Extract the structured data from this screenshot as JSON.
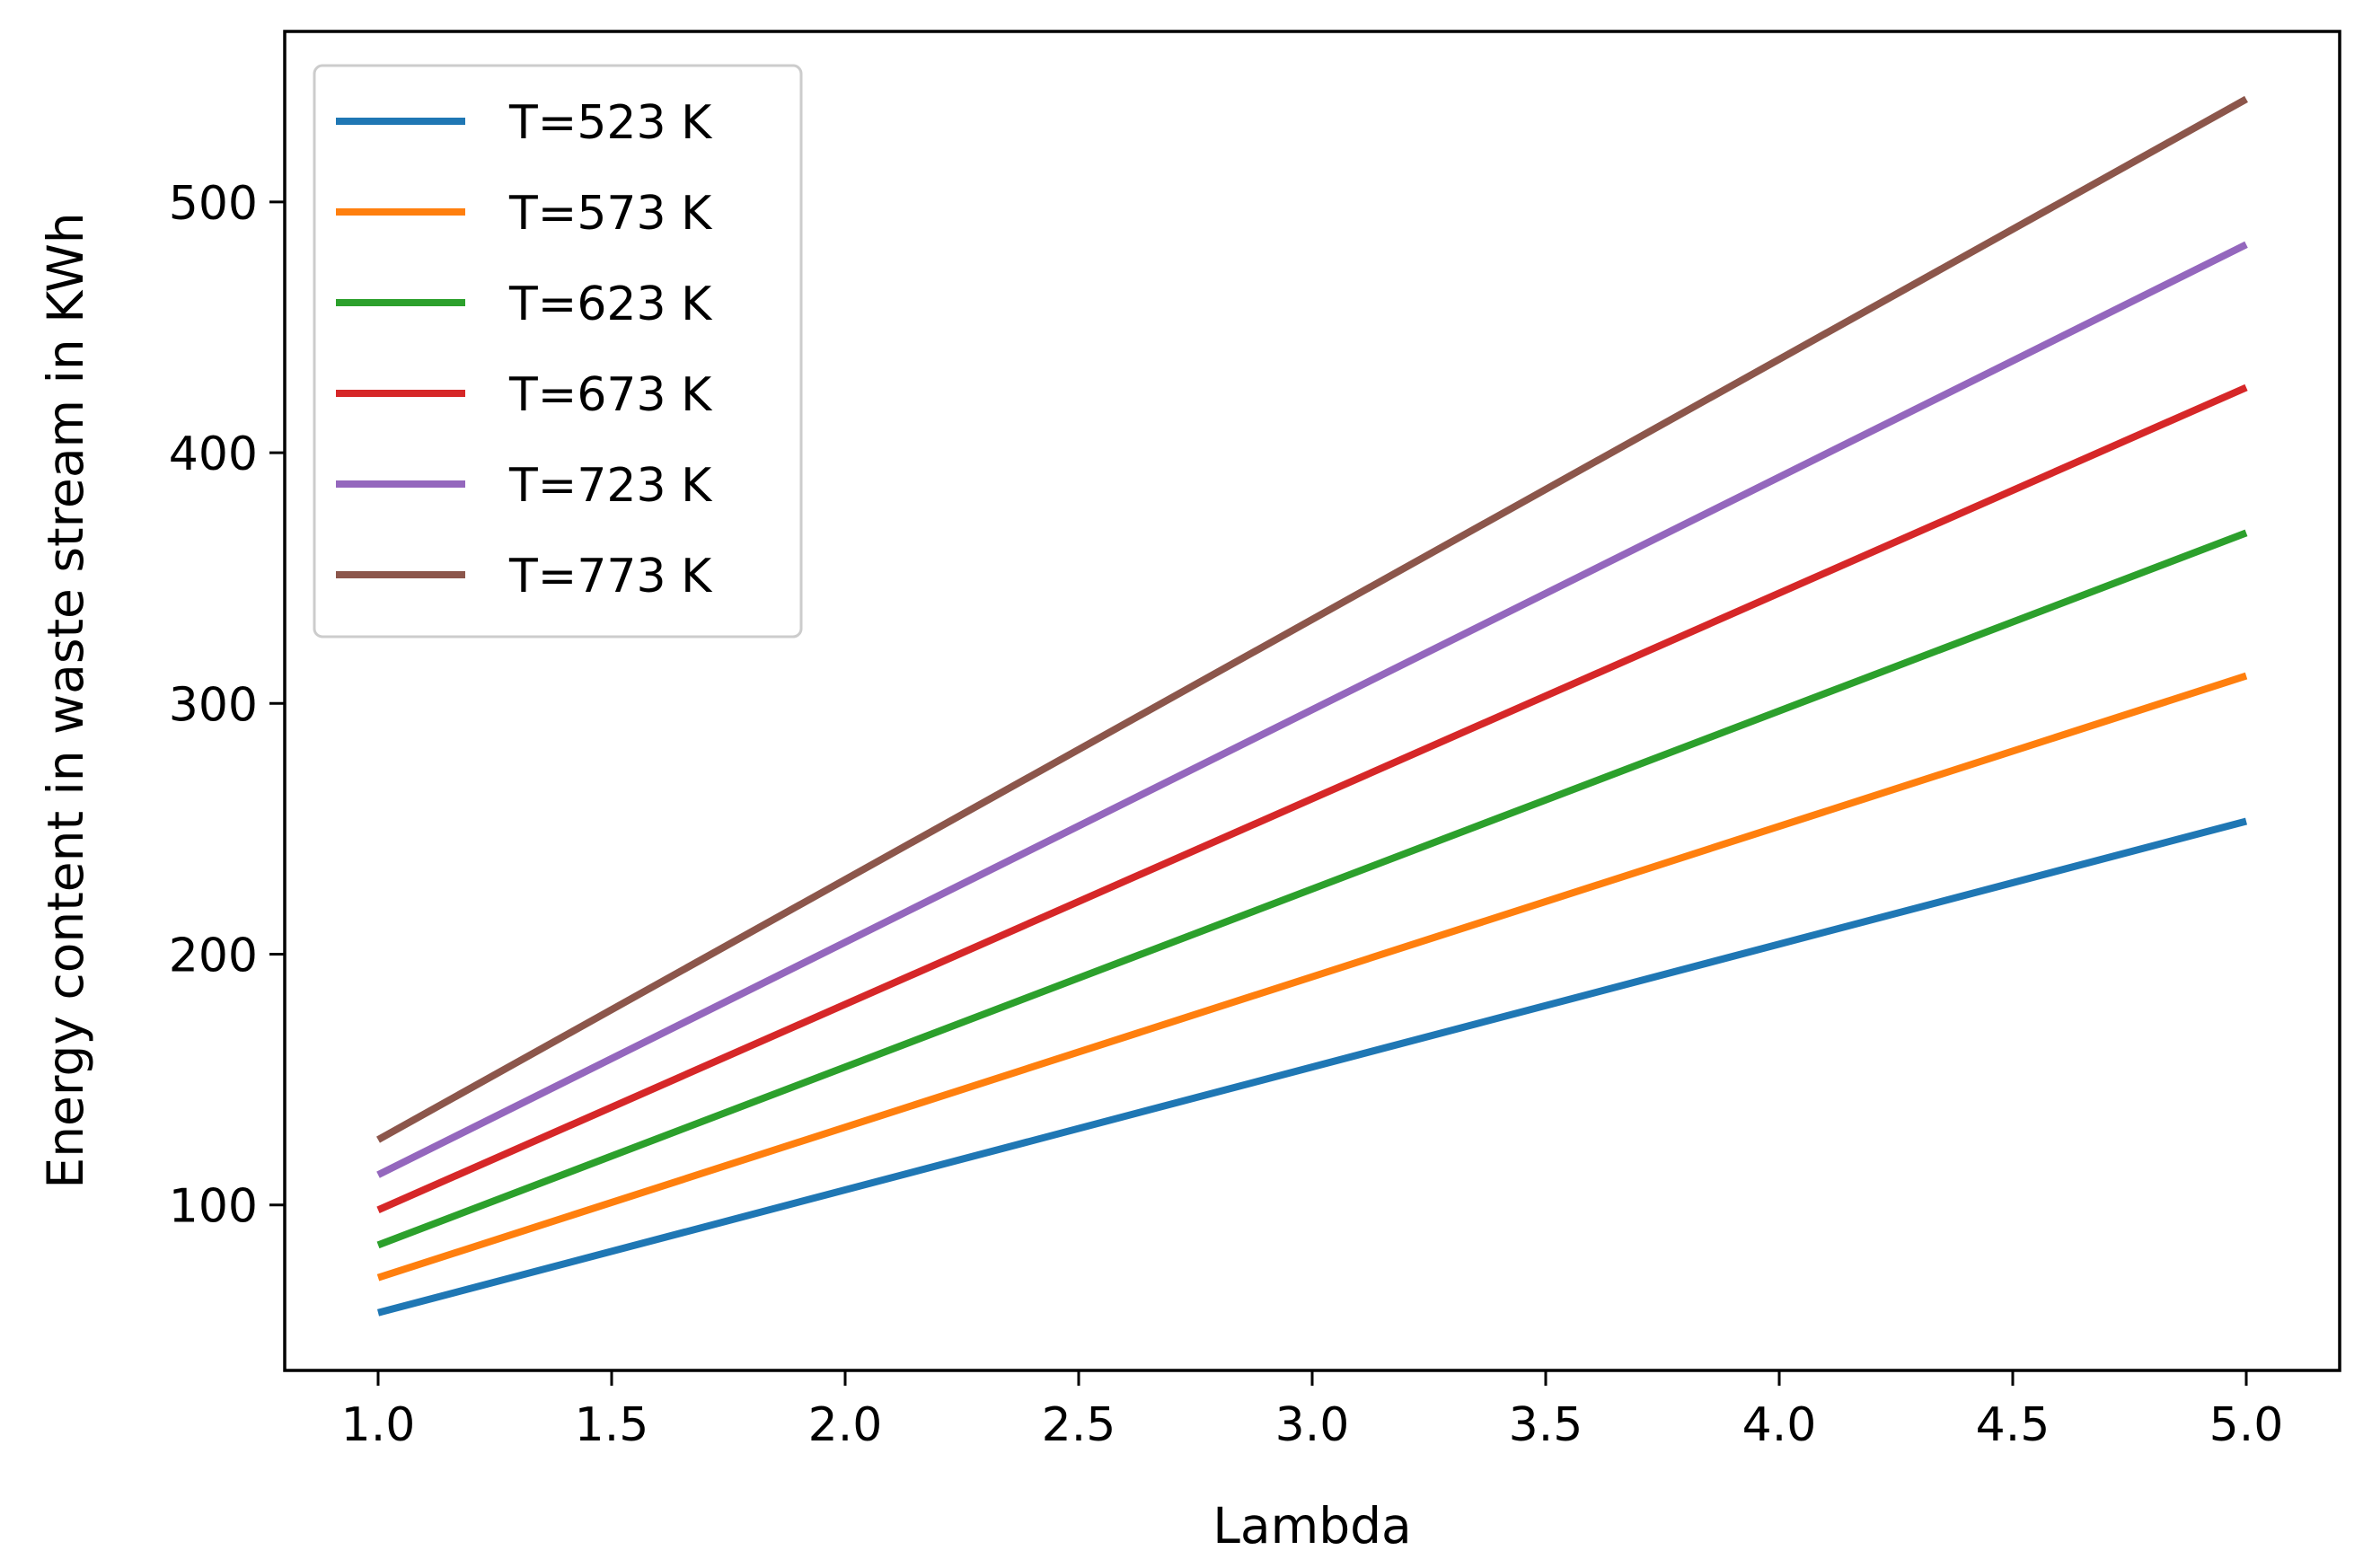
{
  "chart_data": {
    "type": "line",
    "title": "",
    "xlabel": "Lambda",
    "ylabel": "Energy content in waste stream in KWh",
    "xlim": [
      0.8,
      5.2
    ],
    "ylim": [
      34,
      568
    ],
    "x_ticks": [
      1.0,
      1.5,
      2.0,
      2.5,
      3.0,
      3.5,
      4.0,
      4.5,
      5.0
    ],
    "x_tick_labels": [
      "1.0",
      "1.5",
      "2.0",
      "2.5",
      "3.0",
      "3.5",
      "4.0",
      "4.5",
      "5.0"
    ],
    "y_ticks": [
      100,
      200,
      300,
      400,
      500
    ],
    "y_tick_labels": [
      "100",
      "200",
      "300",
      "400",
      "500"
    ],
    "grid": false,
    "legend_position": "top-left",
    "series": [
      {
        "name": "T=523 K",
        "color": "#1f77b4",
        "x": [
          1.0,
          5.0
        ],
        "y": [
          57,
          253
        ]
      },
      {
        "name": "T=573 K",
        "color": "#ff7f0e",
        "x": [
          1.0,
          5.0
        ],
        "y": [
          71,
          311
        ]
      },
      {
        "name": "T=623 K",
        "color": "#2ca02c",
        "x": [
          1.0,
          5.0
        ],
        "y": [
          84,
          368
        ]
      },
      {
        "name": "T=673 K",
        "color": "#d62728",
        "x": [
          1.0,
          5.0
        ],
        "y": [
          98,
          426
        ]
      },
      {
        "name": "T=723 K",
        "color": "#9467bd",
        "x": [
          1.0,
          5.0
        ],
        "y": [
          112,
          483
        ]
      },
      {
        "name": "T=773 K",
        "color": "#8c564b",
        "x": [
          1.0,
          5.0
        ],
        "y": [
          126,
          541
        ]
      }
    ]
  }
}
